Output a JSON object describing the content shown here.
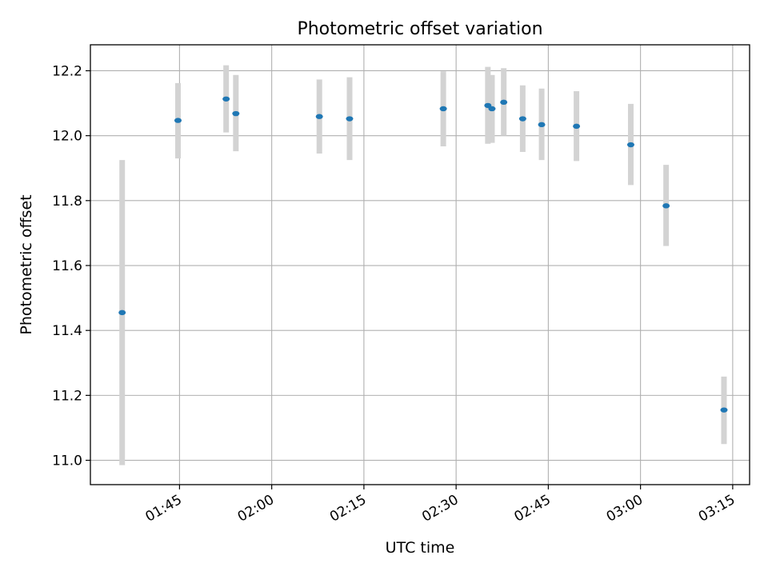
{
  "chart_data": {
    "type": "scatter",
    "title": "Photometric offset variation",
    "xlabel": "UTC time",
    "ylabel": "Photometric offset",
    "x_axis_type": "time",
    "xlim": [
      "01:30:30",
      "03:17:45"
    ],
    "ylim": [
      10.925,
      12.28
    ],
    "x_ticks": [
      "01:45",
      "02:00",
      "02:15",
      "02:30",
      "02:45",
      "03:00",
      "03:15"
    ],
    "y_ticks": [
      11.0,
      11.2,
      11.4,
      11.6,
      11.8,
      12.0,
      12.2
    ],
    "y_tick_labels": [
      "11.0",
      "11.2",
      "11.4",
      "11.6",
      "11.8",
      "12.0",
      "12.2"
    ],
    "grid": true,
    "marker_color": "#1f77b4",
    "errorbar_color": "#d3d3d3",
    "series": [
      {
        "points": [
          {
            "x": "01:35:40",
            "y": 11.455,
            "ylow": 10.985,
            "yhigh": 11.925
          },
          {
            "x": "01:44:45",
            "y": 12.047,
            "ylow": 11.93,
            "yhigh": 12.162
          },
          {
            "x": "01:52:35",
            "y": 12.113,
            "ylow": 12.01,
            "yhigh": 12.217
          },
          {
            "x": "01:54:10",
            "y": 12.068,
            "ylow": 11.952,
            "yhigh": 12.187
          },
          {
            "x": "02:07:45",
            "y": 12.059,
            "ylow": 11.945,
            "yhigh": 12.173
          },
          {
            "x": "02:12:40",
            "y": 12.052,
            "ylow": 11.925,
            "yhigh": 12.18
          },
          {
            "x": "02:27:55",
            "y": 12.083,
            "ylow": 11.967,
            "yhigh": 12.198
          },
          {
            "x": "02:35:10",
            "y": 12.093,
            "ylow": 11.975,
            "yhigh": 12.212
          },
          {
            "x": "02:35:50",
            "y": 12.083,
            "ylow": 11.978,
            "yhigh": 12.187
          },
          {
            "x": "02:37:45",
            "y": 12.103,
            "ylow": 12.0,
            "yhigh": 12.208
          },
          {
            "x": "02:40:50",
            "y": 12.052,
            "ylow": 11.95,
            "yhigh": 12.155
          },
          {
            "x": "02:43:55",
            "y": 12.034,
            "ylow": 11.925,
            "yhigh": 12.145
          },
          {
            "x": "02:49:35",
            "y": 12.029,
            "ylow": 11.922,
            "yhigh": 12.137
          },
          {
            "x": "02:58:25",
            "y": 11.972,
            "ylow": 11.848,
            "yhigh": 12.098
          },
          {
            "x": "03:04:10",
            "y": 11.784,
            "ylow": 11.66,
            "yhigh": 11.91
          },
          {
            "x": "03:13:35",
            "y": 11.155,
            "ylow": 11.05,
            "yhigh": 11.258
          }
        ]
      }
    ]
  }
}
